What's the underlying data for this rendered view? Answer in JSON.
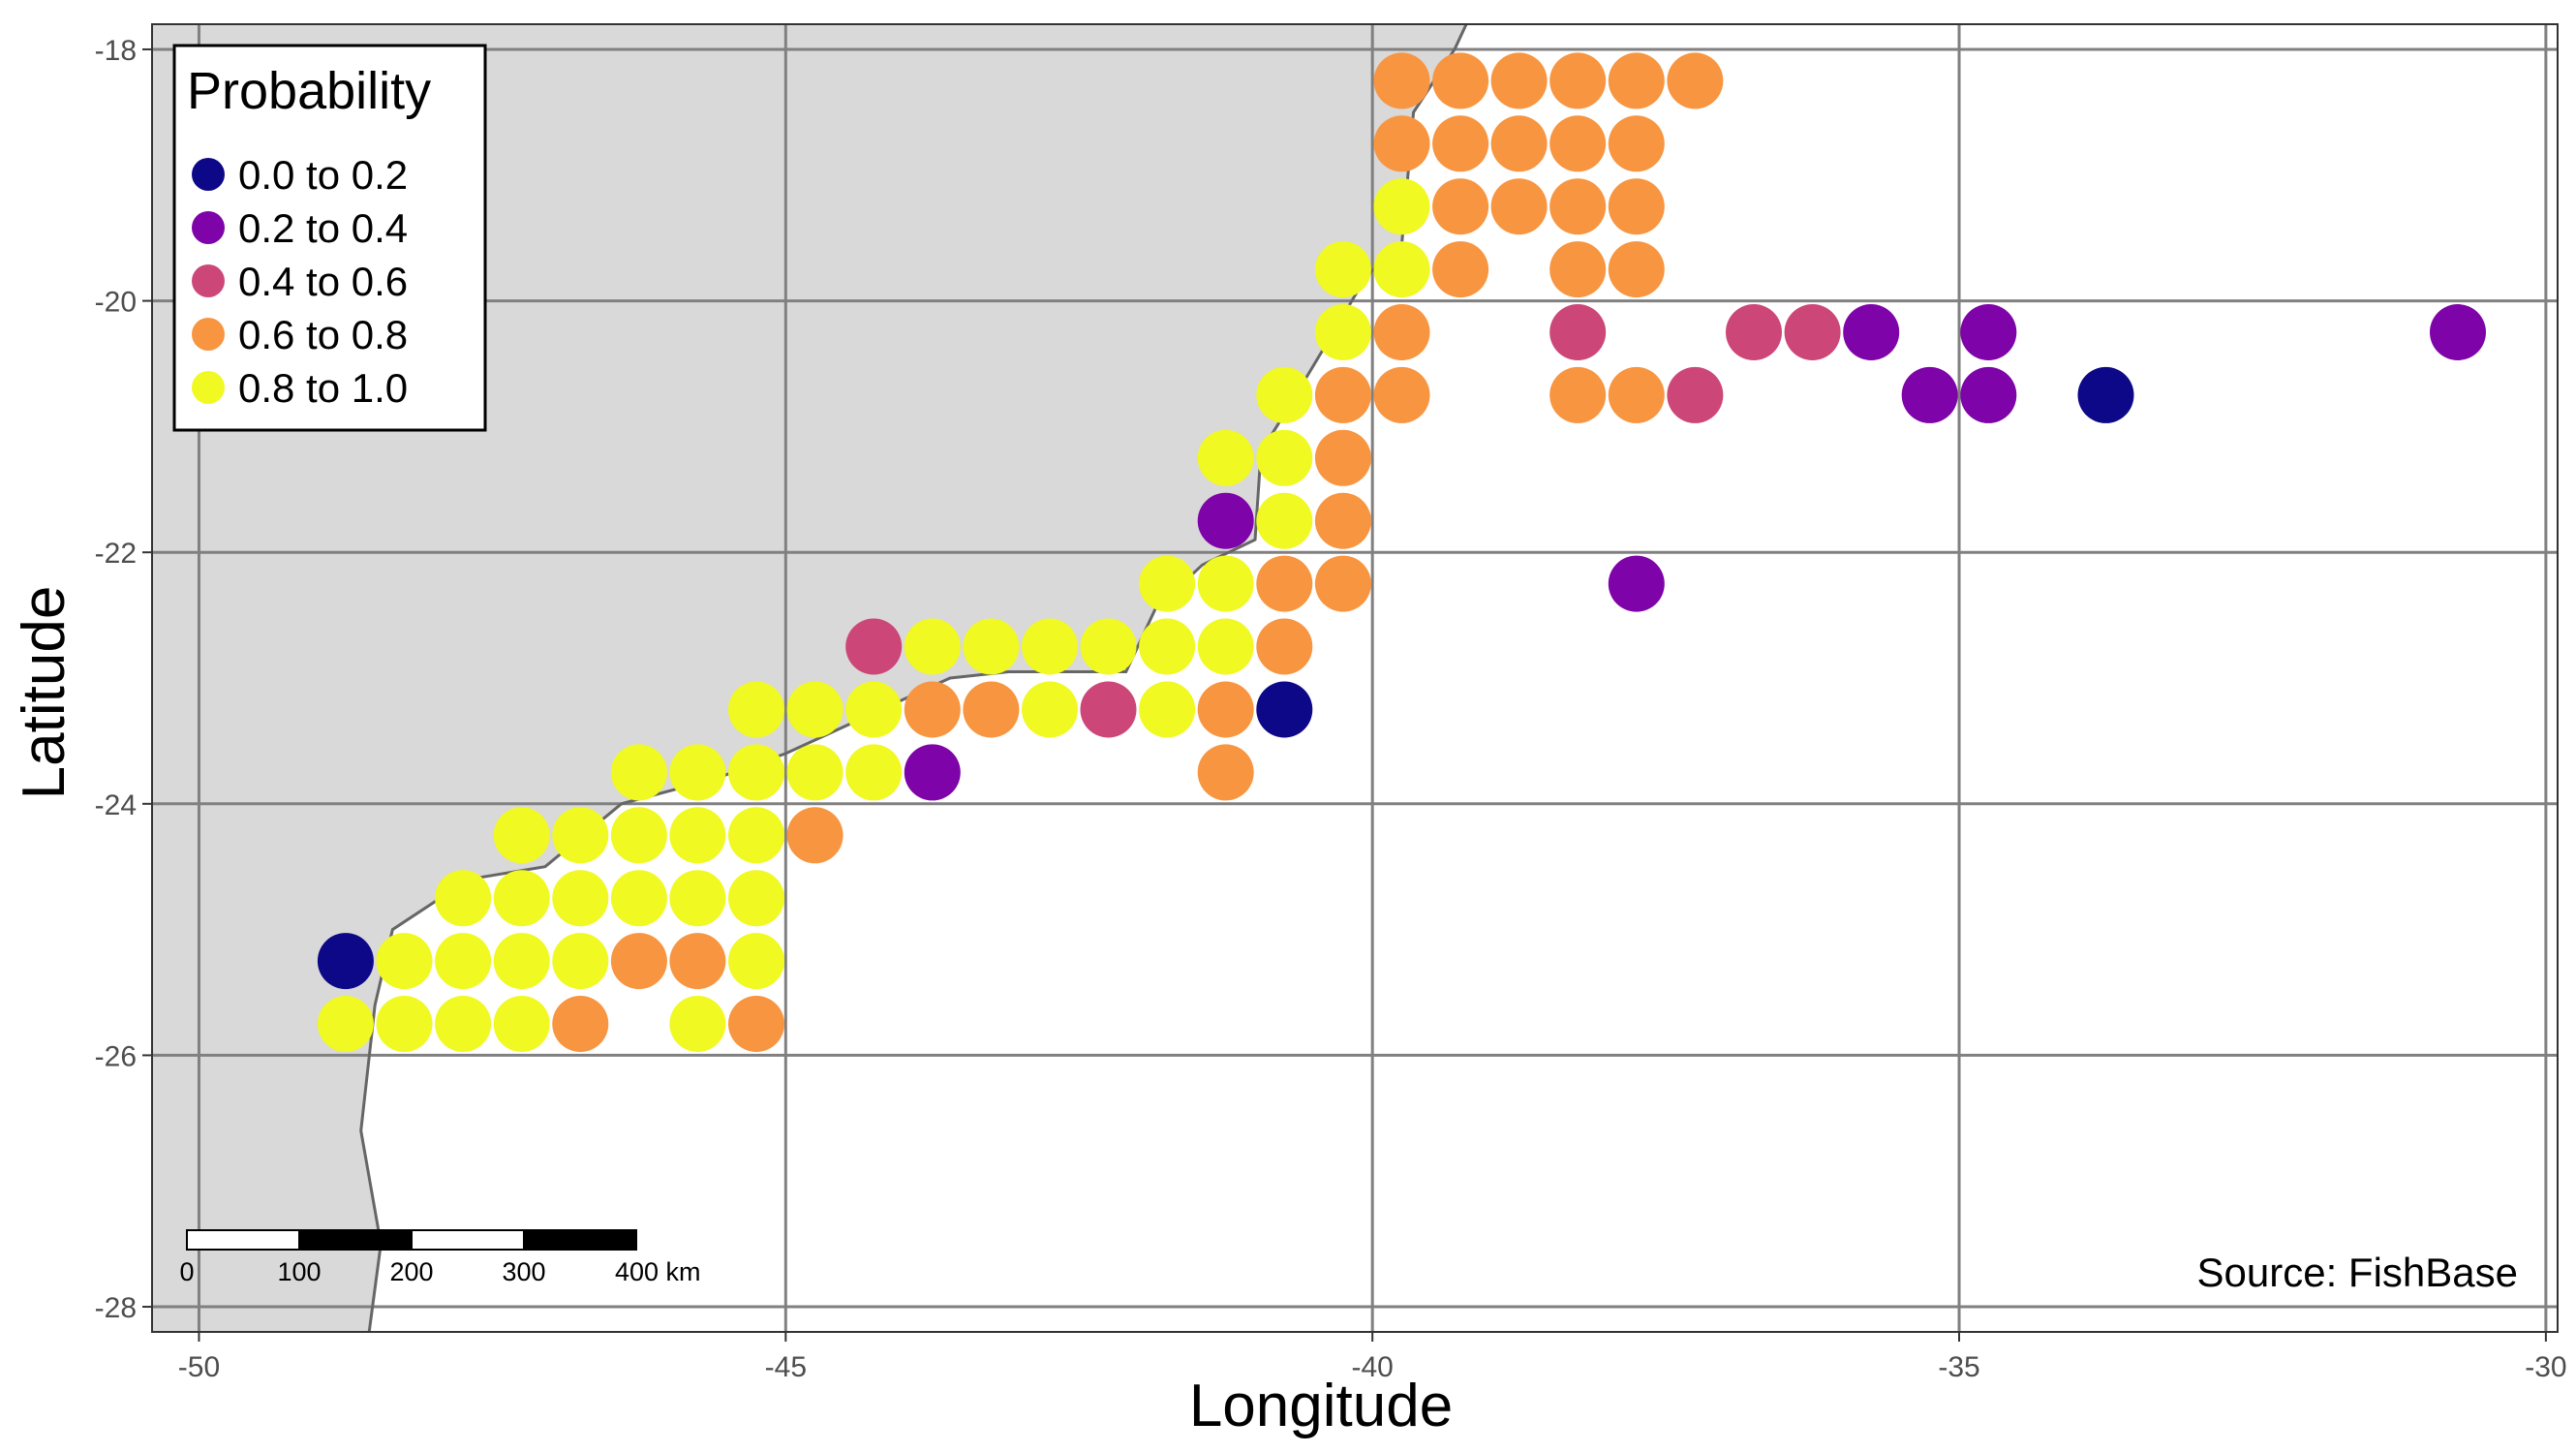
{
  "colors": {
    "land": "#d9d9d9",
    "coast": "#666666",
    "grid": "#808080",
    "panel_border": "#333333",
    "bins": [
      "#0d0887",
      "#7e03a8",
      "#cc4778",
      "#f89540",
      "#f0f921"
    ]
  },
  "map": {
    "xlim": [
      -50.4,
      -29.9
    ],
    "ylim": [
      -28.2,
      -17.8
    ],
    "x_ticks": [
      -50,
      -45,
      -40,
      -35,
      -30
    ],
    "y_ticks": [
      -18,
      -20,
      -22,
      -24,
      -26,
      -28
    ],
    "x_tick_labels": [
      "-50",
      "-45",
      "-40",
      "-35",
      "-30"
    ],
    "y_tick_labels": [
      "-18",
      "-20",
      "-22",
      "-24",
      "-26",
      "-28"
    ],
    "xlabel": "Longitude",
    "ylabel": "Latitude",
    "coastline": [
      [
        -50.4,
        -18.0
      ],
      [
        -50.4,
        -28.2
      ],
      [
        -48.55,
        -28.2
      ],
      [
        -48.45,
        -27.5
      ],
      [
        -48.62,
        -26.6
      ],
      [
        -48.5,
        -25.6
      ],
      [
        -48.35,
        -25.0
      ],
      [
        -47.7,
        -24.6
      ],
      [
        -47.05,
        -24.5
      ],
      [
        -46.4,
        -24.0
      ],
      [
        -45.6,
        -23.8
      ],
      [
        -45.0,
        -23.6
      ],
      [
        -44.3,
        -23.3
      ],
      [
        -43.6,
        -23.0
      ],
      [
        -43.1,
        -22.95
      ],
      [
        -42.1,
        -22.95
      ],
      [
        -41.85,
        -22.45
      ],
      [
        -41.45,
        -22.1
      ],
      [
        -41.0,
        -21.9
      ],
      [
        -40.95,
        -21.2
      ],
      [
        -40.75,
        -20.9
      ],
      [
        -40.3,
        -20.2
      ],
      [
        -40.05,
        -19.8
      ],
      [
        -39.75,
        -19.55
      ],
      [
        -39.65,
        -18.5
      ],
      [
        -39.3,
        -18.0
      ],
      [
        -39.2,
        -17.8
      ],
      [
        -50.4,
        -17.8
      ]
    ]
  },
  "legend": {
    "title": "Probability",
    "items": [
      {
        "label": "0.0 to 0.2",
        "bin": 0
      },
      {
        "label": "0.2 to 0.4",
        "bin": 1
      },
      {
        "label": "0.4 to 0.6",
        "bin": 2
      },
      {
        "label": "0.6 to 0.8",
        "bin": 3
      },
      {
        "label": "0.8 to 1.0",
        "bin": 4
      }
    ]
  },
  "scale_bar": {
    "labels": [
      "0",
      "100",
      "200",
      "300",
      "400 km"
    ],
    "segments": 4,
    "km_per_segment": 100
  },
  "source_text": "Source: FishBase",
  "points": [
    {
      "lon": -39.75,
      "lat": -18.25,
      "bin": 3
    },
    {
      "lon": -39.25,
      "lat": -18.25,
      "bin": 3
    },
    {
      "lon": -38.75,
      "lat": -18.25,
      "bin": 3
    },
    {
      "lon": -38.25,
      "lat": -18.25,
      "bin": 3
    },
    {
      "lon": -37.75,
      "lat": -18.25,
      "bin": 3
    },
    {
      "lon": -37.25,
      "lat": -18.25,
      "bin": 3
    },
    {
      "lon": -39.75,
      "lat": -18.75,
      "bin": 3
    },
    {
      "lon": -39.25,
      "lat": -18.75,
      "bin": 3
    },
    {
      "lon": -38.75,
      "lat": -18.75,
      "bin": 3
    },
    {
      "lon": -38.25,
      "lat": -18.75,
      "bin": 3
    },
    {
      "lon": -37.75,
      "lat": -18.75,
      "bin": 3
    },
    {
      "lon": -39.75,
      "lat": -19.25,
      "bin": 4
    },
    {
      "lon": -39.25,
      "lat": -19.25,
      "bin": 3
    },
    {
      "lon": -38.75,
      "lat": -19.25,
      "bin": 3
    },
    {
      "lon": -38.25,
      "lat": -19.25,
      "bin": 3
    },
    {
      "lon": -37.75,
      "lat": -19.25,
      "bin": 3
    },
    {
      "lon": -40.25,
      "lat": -19.75,
      "bin": 4
    },
    {
      "lon": -39.75,
      "lat": -19.75,
      "bin": 4
    },
    {
      "lon": -39.25,
      "lat": -19.75,
      "bin": 3
    },
    {
      "lon": -38.25,
      "lat": -19.75,
      "bin": 3
    },
    {
      "lon": -37.75,
      "lat": -19.75,
      "bin": 3
    },
    {
      "lon": -40.25,
      "lat": -20.25,
      "bin": 4
    },
    {
      "lon": -39.75,
      "lat": -20.25,
      "bin": 3
    },
    {
      "lon": -38.25,
      "lat": -20.25,
      "bin": 2
    },
    {
      "lon": -36.75,
      "lat": -20.25,
      "bin": 2
    },
    {
      "lon": -36.25,
      "lat": -20.25,
      "bin": 2
    },
    {
      "lon": -35.75,
      "lat": -20.25,
      "bin": 1
    },
    {
      "lon": -34.75,
      "lat": -20.25,
      "bin": 1
    },
    {
      "lon": -30.75,
      "lat": -20.25,
      "bin": 1
    },
    {
      "lon": -40.75,
      "lat": -20.75,
      "bin": 4
    },
    {
      "lon": -40.25,
      "lat": -20.75,
      "bin": 3
    },
    {
      "lon": -39.75,
      "lat": -20.75,
      "bin": 3
    },
    {
      "lon": -38.25,
      "lat": -20.75,
      "bin": 3
    },
    {
      "lon": -37.75,
      "lat": -20.75,
      "bin": 3
    },
    {
      "lon": -37.25,
      "lat": -20.75,
      "bin": 2
    },
    {
      "lon": -35.25,
      "lat": -20.75,
      "bin": 1
    },
    {
      "lon": -34.75,
      "lat": -20.75,
      "bin": 1
    },
    {
      "lon": -33.75,
      "lat": -20.75,
      "bin": 0
    },
    {
      "lon": -41.25,
      "lat": -21.25,
      "bin": 4
    },
    {
      "lon": -40.75,
      "lat": -21.25,
      "bin": 4
    },
    {
      "lon": -40.25,
      "lat": -21.25,
      "bin": 3
    },
    {
      "lon": -41.25,
      "lat": -21.75,
      "bin": 1
    },
    {
      "lon": -40.75,
      "lat": -21.75,
      "bin": 4
    },
    {
      "lon": -40.25,
      "lat": -21.75,
      "bin": 3
    },
    {
      "lon": -41.75,
      "lat": -22.25,
      "bin": 4
    },
    {
      "lon": -41.25,
      "lat": -22.25,
      "bin": 4
    },
    {
      "lon": -40.75,
      "lat": -22.25,
      "bin": 3
    },
    {
      "lon": -40.25,
      "lat": -22.25,
      "bin": 3
    },
    {
      "lon": -37.75,
      "lat": -22.25,
      "bin": 1
    },
    {
      "lon": -44.25,
      "lat": -22.75,
      "bin": 2
    },
    {
      "lon": -43.75,
      "lat": -22.75,
      "bin": 4
    },
    {
      "lon": -43.25,
      "lat": -22.75,
      "bin": 4
    },
    {
      "lon": -42.75,
      "lat": -22.75,
      "bin": 4
    },
    {
      "lon": -42.25,
      "lat": -22.75,
      "bin": 4
    },
    {
      "lon": -41.75,
      "lat": -22.75,
      "bin": 4
    },
    {
      "lon": -41.25,
      "lat": -22.75,
      "bin": 4
    },
    {
      "lon": -40.75,
      "lat": -22.75,
      "bin": 3
    },
    {
      "lon": -45.25,
      "lat": -23.25,
      "bin": 4
    },
    {
      "lon": -44.75,
      "lat": -23.25,
      "bin": 4
    },
    {
      "lon": -44.25,
      "lat": -23.25,
      "bin": 4
    },
    {
      "lon": -43.75,
      "lat": -23.25,
      "bin": 3
    },
    {
      "lon": -43.25,
      "lat": -23.25,
      "bin": 3
    },
    {
      "lon": -42.75,
      "lat": -23.25,
      "bin": 4
    },
    {
      "lon": -42.25,
      "lat": -23.25,
      "bin": 2
    },
    {
      "lon": -41.75,
      "lat": -23.25,
      "bin": 4
    },
    {
      "lon": -41.25,
      "lat": -23.25,
      "bin": 3
    },
    {
      "lon": -40.75,
      "lat": -23.25,
      "bin": 0
    },
    {
      "lon": -46.25,
      "lat": -23.75,
      "bin": 4
    },
    {
      "lon": -45.75,
      "lat": -23.75,
      "bin": 4
    },
    {
      "lon": -45.25,
      "lat": -23.75,
      "bin": 4
    },
    {
      "lon": -44.75,
      "lat": -23.75,
      "bin": 4
    },
    {
      "lon": -44.25,
      "lat": -23.75,
      "bin": 4
    },
    {
      "lon": -43.75,
      "lat": -23.75,
      "bin": 1
    },
    {
      "lon": -41.25,
      "lat": -23.75,
      "bin": 3
    },
    {
      "lon": -47.25,
      "lat": -24.25,
      "bin": 4
    },
    {
      "lon": -46.75,
      "lat": -24.25,
      "bin": 4
    },
    {
      "lon": -46.25,
      "lat": -24.25,
      "bin": 4
    },
    {
      "lon": -45.75,
      "lat": -24.25,
      "bin": 4
    },
    {
      "lon": -45.25,
      "lat": -24.25,
      "bin": 4
    },
    {
      "lon": -44.75,
      "lat": -24.25,
      "bin": 3
    },
    {
      "lon": -47.75,
      "lat": -24.75,
      "bin": 4
    },
    {
      "lon": -47.25,
      "lat": -24.75,
      "bin": 4
    },
    {
      "lon": -46.75,
      "lat": -24.75,
      "bin": 4
    },
    {
      "lon": -46.25,
      "lat": -24.75,
      "bin": 4
    },
    {
      "lon": -45.75,
      "lat": -24.75,
      "bin": 4
    },
    {
      "lon": -45.25,
      "lat": -24.75,
      "bin": 4
    },
    {
      "lon": -48.75,
      "lat": -25.25,
      "bin": 0
    },
    {
      "lon": -48.25,
      "lat": -25.25,
      "bin": 4
    },
    {
      "lon": -47.75,
      "lat": -25.25,
      "bin": 4
    },
    {
      "lon": -47.25,
      "lat": -25.25,
      "bin": 4
    },
    {
      "lon": -46.75,
      "lat": -25.25,
      "bin": 4
    },
    {
      "lon": -46.25,
      "lat": -25.25,
      "bin": 3
    },
    {
      "lon": -45.75,
      "lat": -25.25,
      "bin": 3
    },
    {
      "lon": -45.25,
      "lat": -25.25,
      "bin": 4
    },
    {
      "lon": -48.75,
      "lat": -25.75,
      "bin": 4
    },
    {
      "lon": -48.25,
      "lat": -25.75,
      "bin": 4
    },
    {
      "lon": -47.75,
      "lat": -25.75,
      "bin": 4
    },
    {
      "lon": -47.25,
      "lat": -25.75,
      "bin": 4
    },
    {
      "lon": -46.75,
      "lat": -25.75,
      "bin": 3
    },
    {
      "lon": -45.75,
      "lat": -25.75,
      "bin": 4
    },
    {
      "lon": -45.25,
      "lat": -25.75,
      "bin": 3
    }
  ]
}
